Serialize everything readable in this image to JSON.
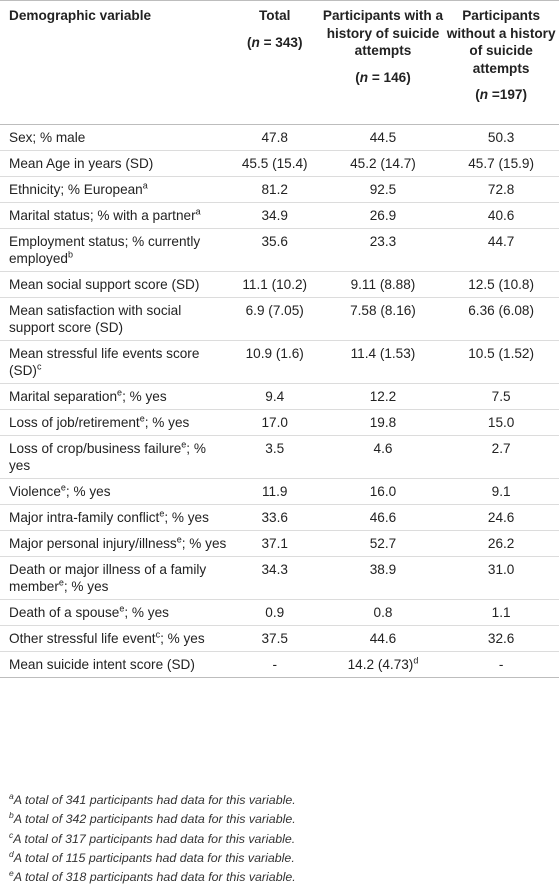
{
  "header": {
    "col0": "Demographic variable",
    "col1": {
      "title": "Total",
      "n": "(n = 343)"
    },
    "col2": {
      "title": "Participants with a history of suicide attempts",
      "n": "(n = 146)"
    },
    "col3": {
      "title": "Participants without a history of suicide attempts",
      "n": "(n =197)"
    }
  },
  "rows": [
    {
      "label": "Sex; % male",
      "label_sup": "",
      "label_after": "",
      "total": "47.8",
      "with": "44.5",
      "with_sup": "",
      "without": "50.3"
    },
    {
      "label": "Mean Age in years (SD)",
      "label_sup": "",
      "label_after": "",
      "total": "45.5 (15.4)",
      "with": "45.2 (14.7)",
      "with_sup": "",
      "without": "45.7 (15.9)"
    },
    {
      "label": "Ethnicity; % European",
      "label_sup": "a",
      "label_after": "",
      "total": "81.2",
      "with": "92.5",
      "with_sup": "",
      "without": "72.8"
    },
    {
      "label": "Marital status; % with a partner",
      "label_sup": "a",
      "label_after": "",
      "total": "34.9",
      "with": "26.9",
      "with_sup": "",
      "without": "40.6"
    },
    {
      "label": "Employment status; % currently employed",
      "label_sup": "b",
      "label_after": "",
      "total": "35.6",
      "with": "23.3",
      "with_sup": "",
      "without": "44.7"
    },
    {
      "label": "Mean social support score (SD)",
      "label_sup": "",
      "label_after": "",
      "total": "11.1 (10.2)",
      "with": "9.11 (8.88)",
      "with_sup": "",
      "without": "12.5 (10.8)"
    },
    {
      "label": "Mean satisfaction with social support score (SD)",
      "label_sup": "",
      "label_after": "",
      "total": "6.9 (7.05)",
      "with": "7.58 (8.16)",
      "with_sup": "",
      "without": "6.36 (6.08)"
    },
    {
      "label": "Mean stressful life events score (SD)",
      "label_sup": "c",
      "label_after": "",
      "total": "10.9 (1.6)",
      "with": "11.4 (1.53)",
      "with_sup": "",
      "without": "10.5 (1.52)"
    },
    {
      "label": "Marital separation",
      "label_sup": "e",
      "label_after": "; % yes",
      "total": "9.4",
      "with": "12.2",
      "with_sup": "",
      "without": "7.5"
    },
    {
      "label": "Loss of job/retirement",
      "label_sup": "e",
      "label_after": "; % yes",
      "total": "17.0",
      "with": "19.8",
      "with_sup": "",
      "without": "15.0"
    },
    {
      "label": "Loss of crop/business failure",
      "label_sup": "e",
      "label_after": "; % yes",
      "total": "3.5",
      "with": "4.6",
      "with_sup": "",
      "without": "2.7"
    },
    {
      "label": "Violence",
      "label_sup": "e",
      "label_after": "; % yes",
      "total": "11.9",
      "with": "16.0",
      "with_sup": "",
      "without": "9.1"
    },
    {
      "label": "Major intra-family conflict",
      "label_sup": "e",
      "label_after": "; % yes",
      "total": "33.6",
      "with": "46.6",
      "with_sup": "",
      "without": "24.6"
    },
    {
      "label": "Major personal injury/illness",
      "label_sup": "e",
      "label_after": "; % yes",
      "total": "37.1",
      "with": "52.7",
      "with_sup": "",
      "without": "26.2"
    },
    {
      "label": "Death or major illness of a family member",
      "label_sup": "e",
      "label_after": "; % yes",
      "total": "34.3",
      "with": "38.9",
      "with_sup": "",
      "without": "31.0"
    },
    {
      "label": "Death of a spouse",
      "label_sup": "e",
      "label_after": "; % yes",
      "total": "0.9",
      "with": "0.8",
      "with_sup": "",
      "without": "1.1"
    },
    {
      "label": "Other stressful life event",
      "label_sup": "c",
      "label_after": "; % yes",
      "total": "37.5",
      "with": "44.6",
      "with_sup": "",
      "without": "32.6"
    },
    {
      "label": "Mean suicide intent score (SD)",
      "label_sup": "",
      "label_after": "",
      "total": "-",
      "with": "14.2 (4.73)",
      "with_sup": "d",
      "without": "-"
    }
  ],
  "footnotes": [
    {
      "mark": "a",
      "text": "A total of 341 participants had data for this variable."
    },
    {
      "mark": "b",
      "text": "A total of 342 participants had data for this variable."
    },
    {
      "mark": "c",
      "text": "A total of 317 participants had data for this variable."
    },
    {
      "mark": "d",
      "text": "A total of 115 participants had data for this variable."
    },
    {
      "mark": "e",
      "text": "A total of 318 participants had data for this variable."
    }
  ]
}
